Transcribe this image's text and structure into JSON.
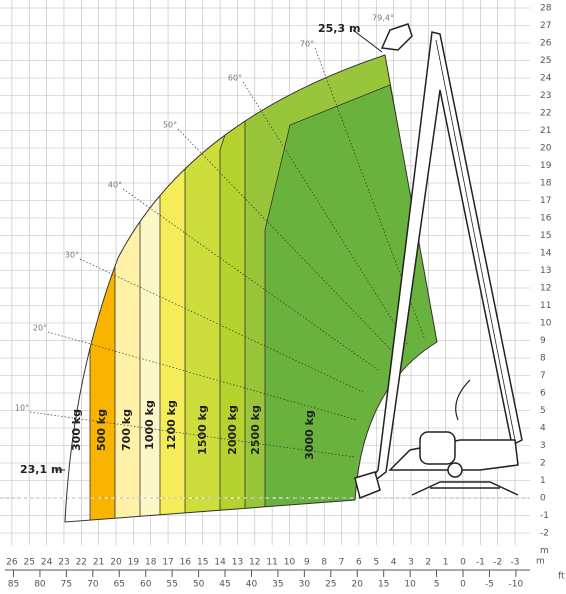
{
  "diagram": {
    "y_axis": {
      "ticks": [
        28,
        27,
        26,
        25,
        24,
        23,
        22,
        21,
        20,
        19,
        18,
        17,
        16,
        15,
        14,
        13,
        12,
        11,
        10,
        9,
        8,
        7,
        6,
        5,
        4,
        3,
        2,
        1,
        0,
        -1,
        -2
      ],
      "unit": "m"
    },
    "x_axis_m": {
      "ticks": [
        26,
        25,
        24,
        23,
        22,
        21,
        20,
        19,
        18,
        17,
        16,
        15,
        14,
        13,
        12,
        11,
        10,
        9,
        8,
        7,
        6,
        5,
        4,
        3,
        2,
        1,
        0,
        -1,
        -2,
        -3
      ],
      "unit": "m"
    },
    "x_axis_ft": {
      "ticks": [
        85,
        80,
        75,
        70,
        65,
        60,
        55,
        50,
        45,
        40,
        35,
        30,
        25,
        20,
        15,
        10,
        5,
        0,
        -5,
        -10
      ],
      "unit": "ft"
    },
    "zones": [
      "300 kg",
      "500 kg",
      "700 kg",
      "1000 kg",
      "1200 kg",
      "1500 kg",
      "2000 kg",
      "2500 kg",
      "3000 kg"
    ],
    "angles": [
      "10°",
      "20°",
      "30°",
      "40°",
      "50°",
      "60°",
      "70°",
      "79,4°"
    ],
    "max_height": "25,3 m",
    "max_reach": "23,1 m"
  }
}
